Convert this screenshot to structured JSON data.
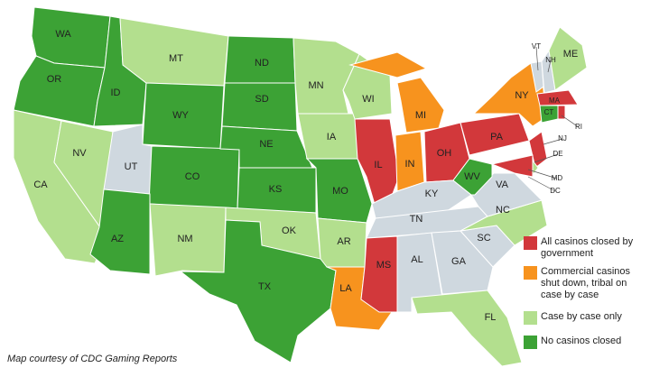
{
  "map": {
    "credit": "Map courtesy of CDC Gaming Reports",
    "unlisted_color": "#cfd8df",
    "legend": [
      {
        "label": "All casinos closed by government",
        "color": "#d2383b"
      },
      {
        "label": "Commercial casinos shut down, tribal on case by case",
        "color": "#f7931e"
      },
      {
        "label": "Case by case only",
        "color": "#b3df8e"
      },
      {
        "label": "No casinos closed",
        "color": "#3ca235"
      }
    ],
    "states": [
      {
        "label": "WA",
        "category": 3
      },
      {
        "label": "OR",
        "category": 3
      },
      {
        "label": "CA",
        "category": 2
      },
      {
        "label": "NV",
        "category": 2
      },
      {
        "label": "ID",
        "category": 3
      },
      {
        "label": "MT",
        "category": 2
      },
      {
        "label": "WY",
        "category": 3
      },
      {
        "label": "UT",
        "category": null
      },
      {
        "label": "CO",
        "category": 3
      },
      {
        "label": "AZ",
        "category": 3
      },
      {
        "label": "NM",
        "category": 2
      },
      {
        "label": "ND",
        "category": 3
      },
      {
        "label": "SD",
        "category": 3
      },
      {
        "label": "NE",
        "category": 3
      },
      {
        "label": "KS",
        "category": 3
      },
      {
        "label": "OK",
        "category": 2
      },
      {
        "label": "TX",
        "category": 3
      },
      {
        "label": "MN",
        "category": 2
      },
      {
        "label": "IA",
        "category": 2
      },
      {
        "label": "MO",
        "category": 3
      },
      {
        "label": "AR",
        "category": 2
      },
      {
        "label": "LA",
        "category": 1
      },
      {
        "label": "WI",
        "category": 2
      },
      {
        "label": "IL",
        "category": 0
      },
      {
        "label": "MI",
        "category": 1
      },
      {
        "label": "IN",
        "category": 1
      },
      {
        "label": "OH",
        "category": 0
      },
      {
        "label": "KY",
        "category": null
      },
      {
        "label": "TN",
        "category": null
      },
      {
        "label": "MS",
        "category": 0
      },
      {
        "label": "AL",
        "category": null
      },
      {
        "label": "GA",
        "category": null
      },
      {
        "label": "FL",
        "category": 2
      },
      {
        "label": "SC",
        "category": null
      },
      {
        "label": "NC",
        "category": 2
      },
      {
        "label": "VA",
        "category": null
      },
      {
        "label": "WV",
        "category": 3
      },
      {
        "label": "PA",
        "category": 0
      },
      {
        "label": "NY",
        "category": 1
      },
      {
        "label": "VT",
        "category": null
      },
      {
        "label": "NH",
        "category": null
      },
      {
        "label": "ME",
        "category": 2
      },
      {
        "label": "MA",
        "category": 0
      },
      {
        "label": "CT",
        "category": 3
      },
      {
        "label": "RI",
        "category": 0
      },
      {
        "label": "NJ",
        "category": 0
      },
      {
        "label": "DE",
        "category": 2
      },
      {
        "label": "MD",
        "category": 0
      },
      {
        "label": "DC",
        "category": 0
      }
    ]
  }
}
